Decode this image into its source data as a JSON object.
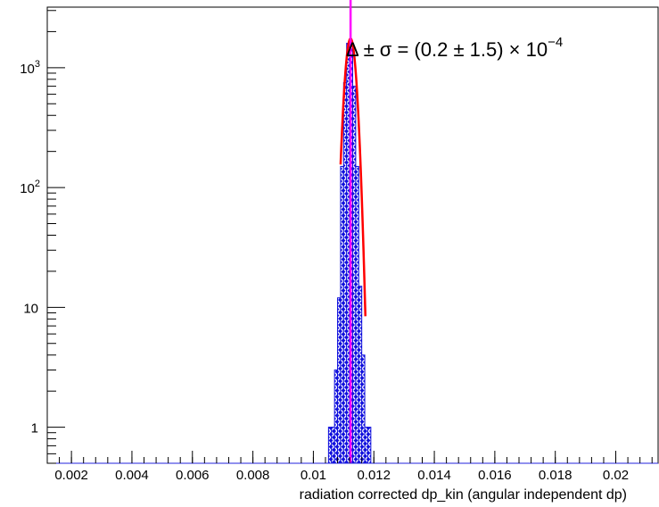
{
  "chart_data": {
    "type": "histogram",
    "title": "",
    "annotation": {
      "text_prefix": "Δ ± σ = (0.2 ± 1.5) × 10",
      "exponent": "−4"
    },
    "xlabel": "radiation corrected dp_kin (angular independent dp)",
    "ylabel": "",
    "xlim": [
      0.0012,
      0.0214
    ],
    "ylim": [
      0.5,
      3200
    ],
    "yscale": "log",
    "grid": false,
    "x_tick_labels": [
      "0.002",
      "0.004",
      "0.006",
      "0.008",
      "0.01",
      "0.012",
      "0.014",
      "0.016",
      "0.018",
      "0.02"
    ],
    "x_ticks": [
      0.002,
      0.004,
      0.006,
      0.008,
      0.01,
      0.012,
      0.014,
      0.016,
      0.018,
      0.02
    ],
    "y_ticks": [
      {
        "value": 1,
        "label": "1",
        "exp": ""
      },
      {
        "value": 10,
        "label": "10",
        "exp": ""
      },
      {
        "value": 100,
        "label": "10",
        "exp": "2"
      },
      {
        "value": 1000,
        "label": "10",
        "exp": "3"
      }
    ],
    "histogram": {
      "bin_width": 0.0001,
      "bins_x": [
        0.0105,
        0.0106,
        0.0107,
        0.0108,
        0.0109,
        0.011,
        0.0111,
        0.0112,
        0.0113,
        0.0114,
        0.0115,
        0.0116,
        0.0117,
        0.0118
      ],
      "counts": [
        1,
        1,
        3,
        12,
        150,
        750,
        1600,
        1500,
        700,
        150,
        15,
        4,
        1,
        1
      ],
      "fill_color": "#1010dd",
      "hatch_color": "#ffffff"
    },
    "fit": {
      "type": "gaussian",
      "amplitude": 1750,
      "mean": 0.01123,
      "sigma": 0.00015,
      "x_range": [
        0.0109,
        0.01172
      ],
      "color": "#ff0000"
    },
    "vertical_line": {
      "x": 0.01123,
      "color": "#ff00ff"
    },
    "axis_color": "#2222dd"
  }
}
